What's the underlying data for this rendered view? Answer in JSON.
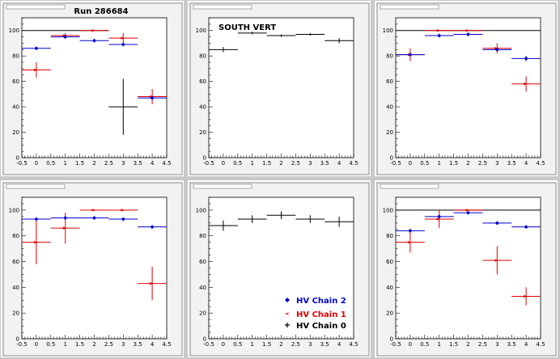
{
  "page": {
    "run_label": "Run 286684",
    "south_label": "SOUTH VERT"
  },
  "legend": {
    "items": [
      {
        "label": "HV Chain 2",
        "color": "#0000cc",
        "marker": "diamond"
      },
      {
        "label": "HV Chain 1",
        "color": "#dd0000",
        "marker": "arrow"
      },
      {
        "label": "HV Chain 0",
        "color": "#000000",
        "marker": "cross"
      }
    ]
  },
  "chart_data": [
    {
      "type": "scatter",
      "title": "",
      "xlim": [
        -0.5,
        4.5
      ],
      "ylim": [
        0,
        110
      ],
      "xticks": [
        "-0.5",
        "0",
        "0.5",
        "1",
        "1.5",
        "2",
        "2.5",
        "3",
        "3.5",
        "4",
        "4.5"
      ],
      "yticks": [
        "0",
        "20",
        "40",
        "60",
        "80",
        "100"
      ],
      "series": [
        {
          "name": "HV Chain 0",
          "color": "#000000",
          "points": [
            {
              "x": 0,
              "y": 100,
              "yerr": 0,
              "xerr": 0.5
            },
            {
              "x": 1,
              "y": 100,
              "yerr": 0,
              "xerr": 0.5
            },
            {
              "x": 2,
              "y": 100,
              "yerr": 0,
              "xerr": 0.5
            },
            {
              "x": 3,
              "y": 40,
              "yerr": 22,
              "xerr": 0.5
            }
          ]
        },
        {
          "name": "HV Chain 1",
          "color": "#dd0000",
          "points": [
            {
              "x": 0,
              "y": 69,
              "yerr": 6,
              "xerr": 0.5
            },
            {
              "x": 1,
              "y": 96,
              "yerr": 2,
              "xerr": 0.5
            },
            {
              "x": 2,
              "y": 100,
              "yerr": 0,
              "xerr": 0.5
            },
            {
              "x": 3,
              "y": 94,
              "yerr": 4,
              "xerr": 0.5
            },
            {
              "x": 4,
              "y": 48,
              "yerr": 6,
              "xerr": 0.5
            }
          ]
        },
        {
          "name": "HV Chain 2",
          "color": "#0000cc",
          "points": [
            {
              "x": 0,
              "y": 86,
              "yerr": 1,
              "xerr": 0.5
            },
            {
              "x": 1,
              "y": 95,
              "yerr": 1,
              "xerr": 0.5
            },
            {
              "x": 2,
              "y": 92,
              "yerr": 1,
              "xerr": 0.5
            },
            {
              "x": 3,
              "y": 89,
              "yerr": 1,
              "xerr": 0.5
            },
            {
              "x": 4,
              "y": 47,
              "yerr": 1,
              "xerr": 0.5
            }
          ]
        }
      ]
    },
    {
      "type": "scatter",
      "title": "",
      "xlim": [
        -0.5,
        4.5
      ],
      "ylim": [
        0,
        110
      ],
      "xticks": [
        "-0.5",
        "0",
        "0.5",
        "1",
        "1.5",
        "2",
        "2.5",
        "3",
        "3.5",
        "4",
        "4.5"
      ],
      "yticks": [
        "0",
        "20",
        "40",
        "60",
        "80",
        "100"
      ],
      "series": [
        {
          "name": "HV Chain 0",
          "color": "#000000",
          "points": [
            {
              "x": 0,
              "y": 85,
              "yerr": 2,
              "xerr": 0.5
            },
            {
              "x": 1,
              "y": 98,
              "yerr": 1,
              "xerr": 0.5
            },
            {
              "x": 2,
              "y": 96,
              "yerr": 1,
              "xerr": 0.5
            },
            {
              "x": 3,
              "y": 97,
              "yerr": 1,
              "xerr": 0.5
            },
            {
              "x": 4,
              "y": 92,
              "yerr": 2,
              "xerr": 0.5
            }
          ]
        }
      ]
    },
    {
      "type": "scatter",
      "title": "",
      "xlim": [
        -0.5,
        4.5
      ],
      "ylim": [
        0,
        110
      ],
      "xticks": [
        "-0.5",
        "0",
        "0.5",
        "1",
        "1.5",
        "2",
        "2.5",
        "3",
        "3.5",
        "4",
        "4.5"
      ],
      "yticks": [
        "0",
        "20",
        "40",
        "60",
        "80",
        "100"
      ],
      "series": [
        {
          "name": "HV Chain 0",
          "color": "#000000",
          "points": [
            {
              "x": 0,
              "y": 100,
              "yerr": 0,
              "xerr": 0.5
            },
            {
              "x": 1,
              "y": 100,
              "yerr": 0,
              "xerr": 0.5
            },
            {
              "x": 2,
              "y": 100,
              "yerr": 0,
              "xerr": 0.5
            },
            {
              "x": 3,
              "y": 100,
              "yerr": 0,
              "xerr": 0.5
            },
            {
              "x": 4,
              "y": 100,
              "yerr": 0,
              "xerr": 0.5
            }
          ]
        },
        {
          "name": "HV Chain 1",
          "color": "#dd0000",
          "points": [
            {
              "x": 0,
              "y": 81,
              "yerr": 5,
              "xerr": 0.5
            },
            {
              "x": 1,
              "y": 100,
              "yerr": 0,
              "xerr": 0.5
            },
            {
              "x": 2,
              "y": 100,
              "yerr": 0,
              "xerr": 0.5
            },
            {
              "x": 3,
              "y": 86,
              "yerr": 4,
              "xerr": 0.5
            },
            {
              "x": 4,
              "y": 58,
              "yerr": 6,
              "xerr": 0.5
            }
          ]
        },
        {
          "name": "HV Chain 2",
          "color": "#0000cc",
          "points": [
            {
              "x": 0,
              "y": 81,
              "yerr": 1,
              "xerr": 0.5
            },
            {
              "x": 1,
              "y": 96,
              "yerr": 1,
              "xerr": 0.5
            },
            {
              "x": 2,
              "y": 97,
              "yerr": 1,
              "xerr": 0.5
            },
            {
              "x": 3,
              "y": 85,
              "yerr": 1,
              "xerr": 0.5
            },
            {
              "x": 4,
              "y": 78,
              "yerr": 2,
              "xerr": 0.5
            }
          ]
        }
      ]
    },
    {
      "type": "scatter",
      "title": "",
      "xlim": [
        -0.5,
        4.5
      ],
      "ylim": [
        0,
        110
      ],
      "xticks": [
        "-0.5",
        "0",
        "0.5",
        "1",
        "1.5",
        "2",
        "2.5",
        "3",
        "3.5",
        "4",
        "4.5"
      ],
      "yticks": [
        "0",
        "20",
        "40",
        "60",
        "80",
        "100"
      ],
      "series": [
        {
          "name": "HV Chain 1",
          "color": "#dd0000",
          "points": [
            {
              "x": 0,
              "y": 75,
              "yerr": 17,
              "xerr": 0.5
            },
            {
              "x": 1,
              "y": 86,
              "yerr": 12,
              "xerr": 0.5
            },
            {
              "x": 2,
              "y": 100,
              "yerr": 0,
              "xerr": 0.5
            },
            {
              "x": 3,
              "y": 100,
              "yerr": 0,
              "xerr": 0.5
            },
            {
              "x": 4,
              "y": 43,
              "yerr": 13,
              "xerr": 0.5
            }
          ]
        },
        {
          "name": "HV Chain 2",
          "color": "#0000cc",
          "points": [
            {
              "x": 0,
              "y": 93,
              "yerr": 1,
              "xerr": 0.5
            },
            {
              "x": 1,
              "y": 94,
              "yerr": 1,
              "xerr": 0.5
            },
            {
              "x": 2,
              "y": 94,
              "yerr": 1,
              "xerr": 0.5
            },
            {
              "x": 3,
              "y": 93,
              "yerr": 1,
              "xerr": 0.5
            },
            {
              "x": 4,
              "y": 87,
              "yerr": 1,
              "xerr": 0.5
            }
          ]
        }
      ]
    },
    {
      "type": "scatter",
      "title": "",
      "xlim": [
        -0.5,
        4.5
      ],
      "ylim": [
        0,
        110
      ],
      "xticks": [
        "-0.5",
        "0",
        "0.5",
        "1",
        "1.5",
        "2",
        "2.5",
        "3",
        "3.5",
        "4",
        "4.5"
      ],
      "yticks": [
        "0",
        "20",
        "40",
        "60",
        "80",
        "100"
      ],
      "series": [
        {
          "name": "HV Chain 0",
          "color": "#000000",
          "points": [
            {
              "x": 0,
              "y": 88,
              "yerr": 4,
              "xerr": 0.5
            },
            {
              "x": 1,
              "y": 93,
              "yerr": 3,
              "xerr": 0.5
            },
            {
              "x": 2,
              "y": 96,
              "yerr": 3,
              "xerr": 0.5
            },
            {
              "x": 3,
              "y": 93,
              "yerr": 3,
              "xerr": 0.5
            },
            {
              "x": 4,
              "y": 91,
              "yerr": 4,
              "xerr": 0.5
            }
          ]
        }
      ]
    },
    {
      "type": "scatter",
      "title": "",
      "xlim": [
        -0.5,
        4.5
      ],
      "ylim": [
        0,
        110
      ],
      "xticks": [
        "-0.5",
        "0",
        "0.5",
        "1",
        "1.5",
        "2",
        "2.5",
        "3",
        "3.5",
        "4",
        "4.5"
      ],
      "yticks": [
        "0",
        "20",
        "40",
        "60",
        "80",
        "100"
      ],
      "series": [
        {
          "name": "HV Chain 0",
          "color": "#000000",
          "points": [
            {
              "x": 0,
              "y": 100,
              "yerr": 0,
              "xerr": 0.5
            },
            {
              "x": 1,
              "y": 100,
              "yerr": 0,
              "xerr": 0.5
            },
            {
              "x": 2,
              "y": 100,
              "yerr": 0,
              "xerr": 0.5
            },
            {
              "x": 3,
              "y": 100,
              "yerr": 0,
              "xerr": 0.5
            },
            {
              "x": 4,
              "y": 100,
              "yerr": 0,
              "xerr": 0.5
            }
          ]
        },
        {
          "name": "HV Chain 1",
          "color": "#dd0000",
          "points": [
            {
              "x": 0,
              "y": 75,
              "yerr": 8,
              "xerr": 0.5
            },
            {
              "x": 1,
              "y": 93,
              "yerr": 7,
              "xerr": 0.5
            },
            {
              "x": 2,
              "y": 100,
              "yerr": 0,
              "xerr": 0.5
            },
            {
              "x": 3,
              "y": 61,
              "yerr": 11,
              "xerr": 0.5
            },
            {
              "x": 4,
              "y": 33,
              "yerr": 7,
              "xerr": 0.5
            }
          ]
        },
        {
          "name": "HV Chain 2",
          "color": "#0000cc",
          "points": [
            {
              "x": 0,
              "y": 84,
              "yerr": 1,
              "xerr": 0.5
            },
            {
              "x": 1,
              "y": 95,
              "yerr": 1,
              "xerr": 0.5
            },
            {
              "x": 2,
              "y": 98,
              "yerr": 1,
              "xerr": 0.5
            },
            {
              "x": 3,
              "y": 90,
              "yerr": 1,
              "xerr": 0.5
            },
            {
              "x": 4,
              "y": 87,
              "yerr": 1,
              "xerr": 0.5
            }
          ]
        }
      ]
    }
  ]
}
